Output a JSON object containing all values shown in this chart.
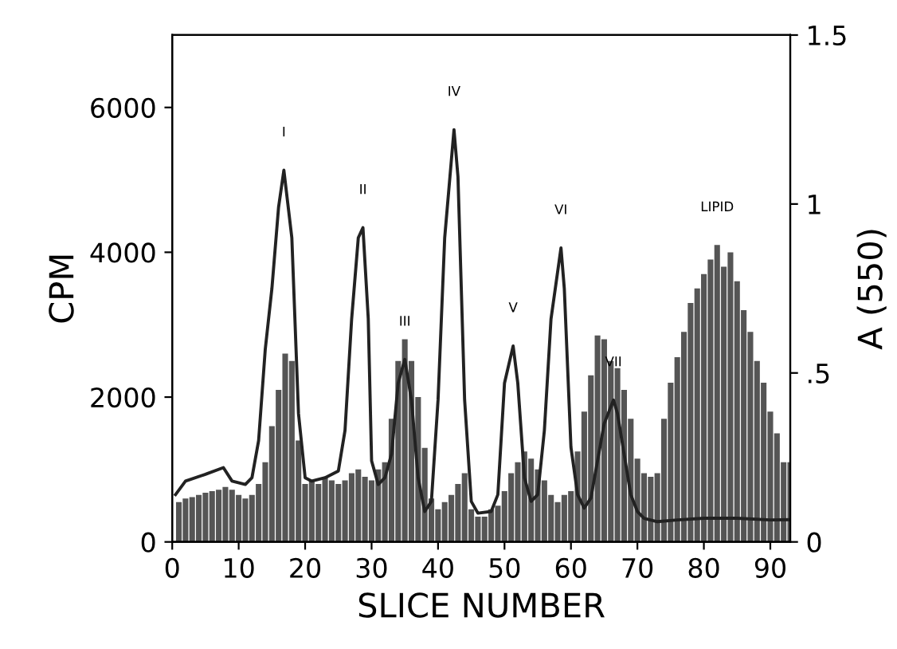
{
  "chart_data": {
    "type": "bar",
    "xlabel": "SLICE NUMBER",
    "ylabel": "CPM",
    "y2label": "A (550)",
    "x": [
      1,
      2,
      3,
      4,
      5,
      6,
      7,
      8,
      9,
      10,
      11,
      12,
      13,
      14,
      15,
      16,
      17,
      18,
      19,
      20,
      21,
      22,
      23,
      24,
      25,
      26,
      27,
      28,
      29,
      30,
      31,
      32,
      33,
      34,
      35,
      36,
      37,
      38,
      39,
      40,
      41,
      42,
      43,
      44,
      45,
      46,
      47,
      48,
      49,
      50,
      51,
      52,
      53,
      54,
      55,
      56,
      57,
      58,
      59,
      60,
      61,
      62,
      63,
      64,
      65,
      66,
      67,
      68,
      69,
      70,
      71,
      72,
      73,
      74,
      75,
      76,
      77,
      78,
      79,
      80,
      81,
      82,
      83,
      84,
      85,
      86,
      87,
      88,
      89,
      90,
      91,
      92,
      93
    ],
    "series": [
      {
        "color": "#555555",
        "values": [
          550,
          600,
          620,
          650,
          680,
          700,
          720,
          760,
          720,
          650,
          600,
          650,
          800,
          1100,
          1600,
          2100,
          2600,
          2500,
          1400,
          800,
          850,
          800,
          900,
          850,
          800,
          850,
          950,
          1000,
          900,
          850,
          1000,
          1100,
          1700,
          2500,
          2800,
          2500,
          2000,
          1300,
          600,
          450,
          550,
          650,
          800,
          950,
          450,
          350,
          350,
          450,
          500,
          700,
          950,
          1100,
          1250,
          1150,
          1000,
          850,
          650,
          550,
          650,
          700,
          1250,
          1800,
          2300,
          2850,
          2800,
          2500,
          2400,
          2100,
          1700,
          1150,
          950,
          900,
          950,
          1700,
          2200,
          2550,
          2900,
          3300,
          3500,
          3700,
          3900,
          4100,
          3800,
          4000,
          3600,
          3200,
          2900,
          2500,
          2200,
          1800,
          1500,
          1100,
          1100
        ]
      },
      {
        "type": "line",
        "axis": "y2",
        "color": "#222222",
        "x": [
          0.5,
          2,
          5,
          7.7,
          9,
          11,
          12,
          13,
          14,
          15,
          16,
          16.8,
          18,
          19,
          20,
          21,
          23,
          25,
          26,
          27,
          28,
          28.7,
          29.5,
          30,
          31,
          32,
          33,
          34,
          35,
          36,
          37,
          38,
          39,
          40,
          41,
          42.4,
          43,
          44,
          45,
          46,
          48,
          49,
          50,
          51.3,
          52,
          53,
          54,
          55,
          56,
          57,
          58.5,
          59,
          60,
          61,
          62,
          63,
          64,
          65,
          66.4,
          67,
          68,
          69,
          70,
          71,
          73,
          76,
          80,
          85,
          90,
          93
        ],
        "values": [
          0.14,
          0.18,
          0.2,
          0.22,
          0.18,
          0.17,
          0.19,
          0.3,
          0.57,
          0.75,
          0.99,
          1.1,
          0.9,
          0.38,
          0.19,
          0.18,
          0.19,
          0.21,
          0.33,
          0.66,
          0.9,
          0.93,
          0.66,
          0.24,
          0.17,
          0.19,
          0.26,
          0.47,
          0.54,
          0.42,
          0.19,
          0.09,
          0.12,
          0.42,
          0.9,
          1.22,
          1.08,
          0.42,
          0.12,
          0.085,
          0.09,
          0.14,
          0.47,
          0.58,
          0.47,
          0.19,
          0.12,
          0.14,
          0.33,
          0.66,
          0.87,
          0.75,
          0.28,
          0.14,
          0.1,
          0.13,
          0.24,
          0.35,
          0.42,
          0.38,
          0.26,
          0.14,
          0.09,
          0.07,
          0.06,
          0.065,
          0.07,
          0.07,
          0.065,
          0.066
        ]
      }
    ],
    "xlim": [
      0,
      93
    ],
    "xticks": [
      0,
      10,
      20,
      30,
      40,
      50,
      60,
      70,
      80,
      90
    ],
    "ylim": [
      0,
      7000
    ],
    "yticks": [
      0,
      2000,
      4000,
      6000
    ],
    "y2lim": [
      0,
      1.5
    ],
    "y2ticks": [
      0,
      {
        "value": 0.5,
        "label": ".5"
      },
      1,
      1.5
    ],
    "annotations": [
      "I",
      "II",
      "III",
      "IV",
      "V",
      "VI",
      "VII",
      "LIPID"
    ]
  }
}
